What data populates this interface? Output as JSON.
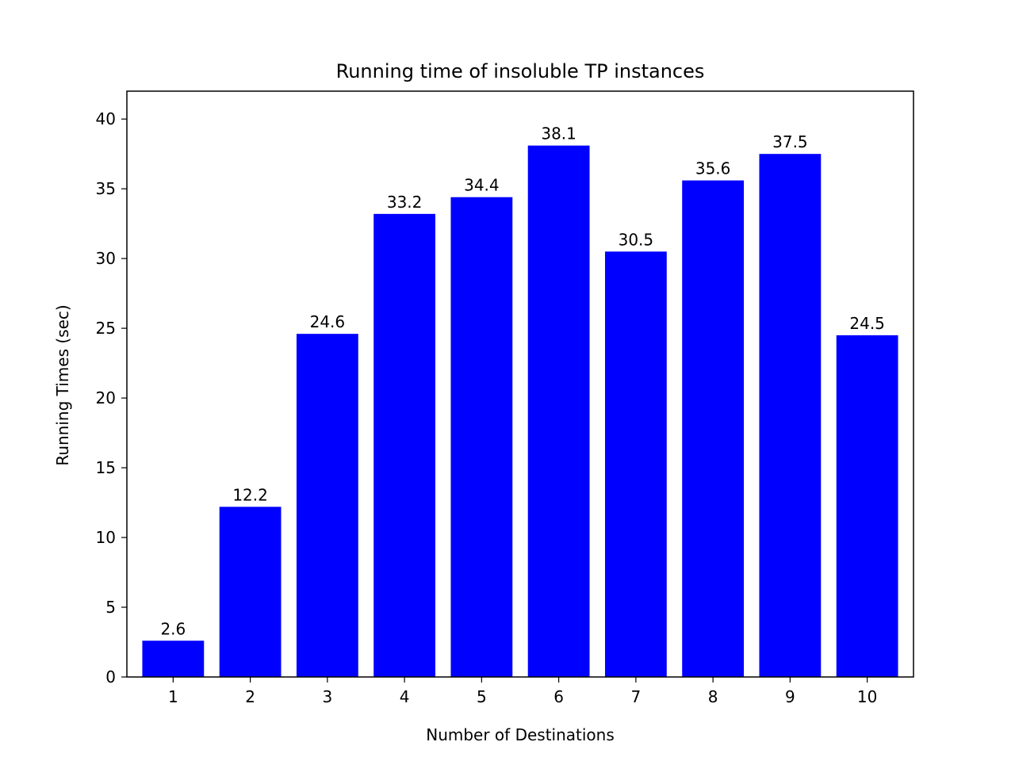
{
  "chart_data": {
    "type": "bar",
    "title": "Running time of insoluble TP instances",
    "xlabel": "Number of Destinations",
    "ylabel": "Running Times (sec)",
    "categories": [
      "1",
      "2",
      "3",
      "4",
      "5",
      "6",
      "7",
      "8",
      "9",
      "10"
    ],
    "values": [
      2.6,
      12.2,
      24.6,
      33.2,
      34.4,
      38.1,
      30.5,
      35.6,
      37.5,
      24.5
    ],
    "data_labels": [
      "2.6",
      "12.2",
      "24.6",
      "33.2",
      "34.4",
      "38.1",
      "30.5",
      "35.6",
      "37.5",
      "24.5"
    ],
    "ylim": [
      0,
      42
    ],
    "yticks": [
      0,
      5,
      10,
      15,
      20,
      25,
      30,
      35,
      40
    ],
    "ytick_labels": [
      "0",
      "5",
      "10",
      "15",
      "20",
      "25",
      "30",
      "35",
      "40"
    ],
    "grid": false,
    "legend": "none",
    "bar_color": "#0000ff"
  }
}
